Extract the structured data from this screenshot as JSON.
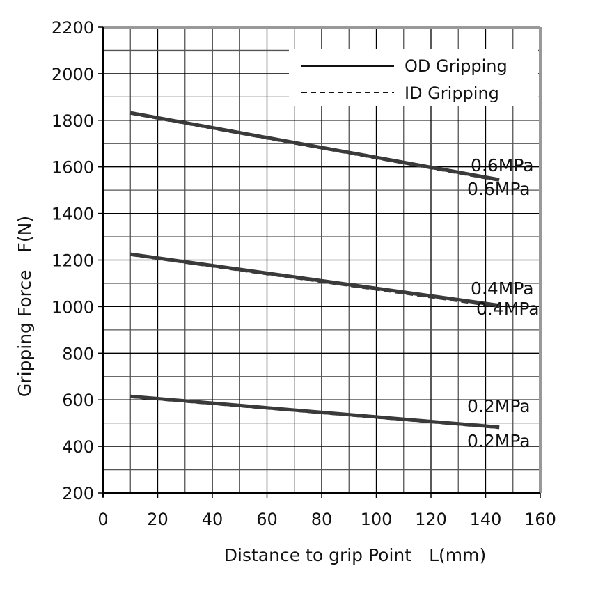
{
  "chart_data": {
    "type": "line",
    "title": "",
    "xlabel": "Distance to grip Point　L(mm)",
    "ylabel": "Gripping Force　F(N)",
    "xlim": [
      0,
      160
    ],
    "ylim": [
      200,
      2200
    ],
    "xticks": [
      0,
      20,
      40,
      60,
      80,
      100,
      120,
      140,
      160
    ],
    "yticks": [
      200,
      400,
      600,
      800,
      1000,
      1200,
      1400,
      1600,
      1800,
      2000,
      2200
    ],
    "x_minor_step": 10,
    "y_minor_step": 100,
    "grid": true,
    "legend_placement": "top-right",
    "legend": [
      {
        "label": "OD Gripping",
        "style": "solid"
      },
      {
        "label": "ID Gripping",
        "style": "dashed"
      }
    ],
    "series": [
      {
        "group": "OD Gripping",
        "pressure_label": "0.6MPa",
        "x": [
          10,
          145
        ],
        "y": [
          1832,
          1545
        ]
      },
      {
        "group": "ID Gripping",
        "pressure_label": "0.6MPa",
        "x": [
          10,
          145
        ],
        "y": [
          1830,
          1542
        ]
      },
      {
        "group": "OD Gripping",
        "pressure_label": "0.4MPa",
        "x": [
          10,
          145
        ],
        "y": [
          1225,
          1005
        ]
      },
      {
        "group": "ID Gripping",
        "pressure_label": "0.4MPa",
        "x": [
          10,
          145
        ],
        "y": [
          1223,
          1000
        ]
      },
      {
        "group": "OD Gripping",
        "pressure_label": "0.2MPa",
        "x": [
          10,
          145
        ],
        "y": [
          615,
          482
        ]
      },
      {
        "group": "ID Gripping",
        "pressure_label": "0.2MPa",
        "x": [
          10,
          145
        ],
        "y": [
          613,
          480
        ]
      }
    ],
    "colors": {
      "line": "#3a3a3a",
      "grid": "#000000",
      "frame": "#999999"
    }
  }
}
